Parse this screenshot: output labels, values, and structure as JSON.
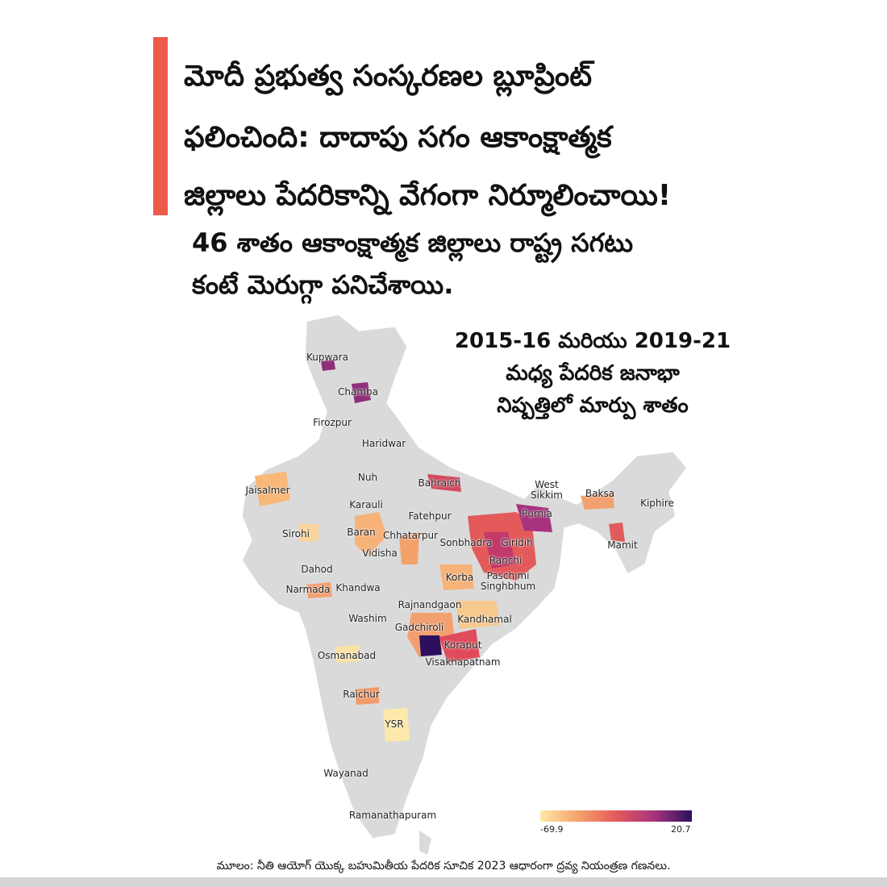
{
  "headline": [
    "మోదీ ప్రభుత్వ సంస్కరణల బ్లూప్రింట్",
    "ఫలించింది: దాదాపు సగం ఆకాంక్షాత్మక",
    "జిల్లాలు పేదరికాన్ని వేగంగా నిర్మూలించాయి!"
  ],
  "subheadline": [
    "46 శాతం ఆకాంక్షాత్మక జిల్లాలు రాష్ట్ర సగటు",
    "కంటే మెరుగ్గా పనిచేశాయి."
  ],
  "map": {
    "title": [
      "2015-16 మరియు 2019-21",
      "మధ్య పేదరిక జనాభా",
      "నిష్పత్తిలో మార్పు శాతం"
    ],
    "labels": [
      "Kupwara",
      "Chamba",
      "Firozpur",
      "Haridwar",
      "Jaisalmer",
      "Nuh",
      "Bahraich",
      "West Sikkim",
      "Baksa",
      "Kiphire",
      "Karauli",
      "Fatehpur",
      "Purnia",
      "Sirohi",
      "Baran",
      "Chhatarpur",
      "Sonbhadra",
      "Giridih",
      "Mamit",
      "Vidisha",
      "Ranchi",
      "Dahod",
      "Korba",
      "Paschimi Singhbhum",
      "Narmada",
      "Khandwa",
      "Rajnandgaon",
      "Washim",
      "Kandhamal",
      "Gadchiroli",
      "Koraput",
      "Osmanabad",
      "Visakhapatnam",
      "Raichur",
      "YSR",
      "Wayanad",
      "Ramanathapuram"
    ],
    "colorbar": {
      "min": -69.9,
      "max": 20.7
    }
  },
  "source": "మూలం: నీతి ఆయోగ్ యొక్క బహుమితీయ పేదరిక సూచిక 2023 ఆధారంగా ద్రవ్య నియంత్రణ గణనలు."
}
